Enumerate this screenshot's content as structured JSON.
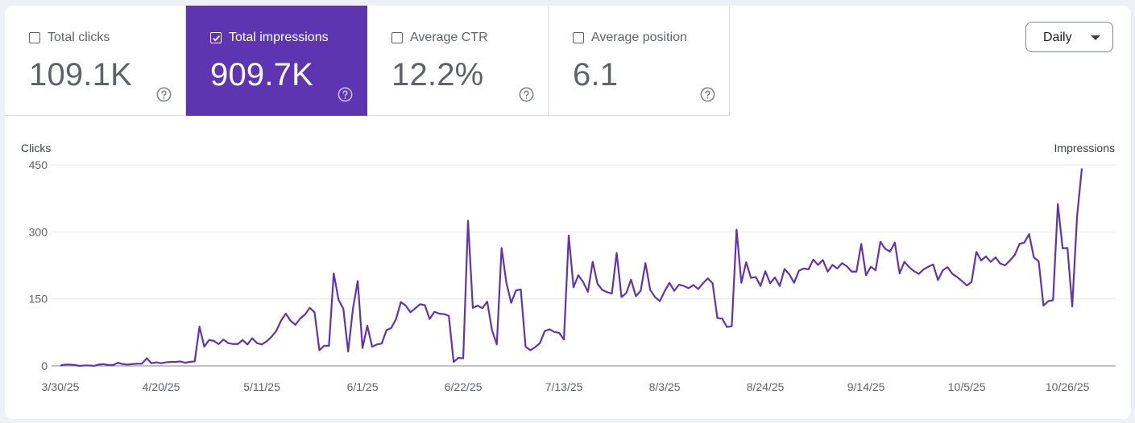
{
  "metrics": [
    {
      "label": "Total clicks",
      "value": "109.1K",
      "checked": false
    },
    {
      "label": "Total impressions",
      "value": "909.7K",
      "checked": true
    },
    {
      "label": "Average CTR",
      "value": "12.2%",
      "checked": false
    },
    {
      "label": "Average position",
      "value": "6.1",
      "checked": false
    }
  ],
  "period_selector": {
    "selected": "Daily"
  },
  "colors": {
    "accent": "#5e35b1",
    "line": "#5e35b1",
    "grid": "#e8eaed",
    "axis_text": "#5f6368"
  },
  "chart_data": {
    "type": "line",
    "left_axis_title": "Clicks",
    "right_axis_title": "Impressions",
    "ylim": [
      0,
      450
    ],
    "y_ticks": [
      0,
      150,
      300,
      450
    ],
    "x_tick_labels": [
      "3/30/25",
      "4/20/25",
      "5/11/25",
      "6/1/25",
      "6/22/25",
      "7/13/25",
      "8/3/25",
      "8/24/25",
      "9/14/25",
      "10/5/25",
      "10/26/25"
    ],
    "x_start": "3/30/25",
    "x_end": "10/26/25",
    "series": [
      {
        "values": [
          1,
          3,
          3,
          2,
          0,
          1,
          1,
          0,
          3,
          4,
          2,
          2,
          7,
          4,
          3,
          4,
          5,
          5,
          17,
          6,
          8,
          6,
          8,
          9,
          9,
          10,
          7,
          9,
          10,
          88,
          43,
          58,
          56,
          49,
          59,
          51,
          49,
          49,
          58,
          48,
          62,
          51,
          48,
          55,
          65,
          78,
          101,
          117,
          101,
          92,
          106,
          115,
          130,
          120,
          35,
          45,
          45,
          207,
          148,
          128,
          32,
          128,
          190,
          40,
          90,
          43,
          48,
          50,
          80,
          85,
          105,
          143,
          135,
          120,
          129,
          138,
          136,
          105,
          121,
          117,
          116,
          112,
          9,
          18,
          17,
          325,
          130,
          135,
          129,
          144,
          80,
          48,
          264,
          186,
          141,
          169,
          171,
          43,
          35,
          42,
          51,
          78,
          82,
          76,
          74,
          59,
          292,
          176,
          203,
          188,
          166,
          233,
          184,
          170,
          165,
          162,
          253,
          154,
          163,
          193,
          156,
          168,
          230,
          170,
          154,
          145,
          167,
          186,
          168,
          182,
          179,
          174,
          181,
          172,
          185,
          196,
          185,
          107,
          106,
          87,
          89,
          305,
          186,
          232,
          197,
          199,
          179,
          212,
          185,
          198,
          179,
          217,
          205,
          186,
          213,
          218,
          216,
          238,
          226,
          237,
          211,
          226,
          218,
          230,
          223,
          211,
          211,
          273,
          203,
          222,
          214,
          278,
          262,
          256,
          276,
          207,
          233,
          221,
          212,
          206,
          216,
          222,
          227,
          192,
          214,
          221,
          206,
          199,
          190,
          180,
          188,
          255,
          236,
          245,
          233,
          243,
          229,
          225,
          236,
          248,
          273,
          276,
          295,
          243,
          234,
          135,
          145,
          147,
          362,
          263,
          264,
          133,
          334,
          442
        ]
      }
    ]
  }
}
